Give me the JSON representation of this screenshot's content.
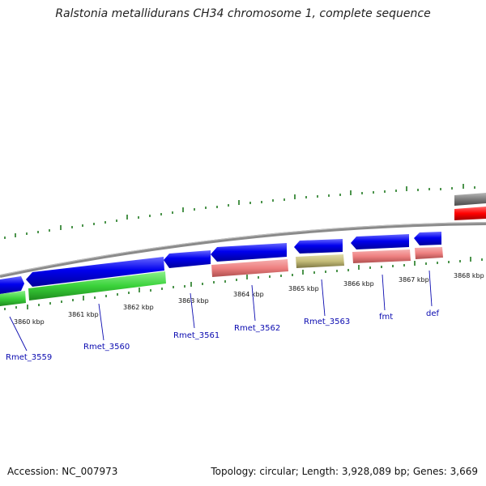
{
  "title": "Ralstonia metallidurans CH34 chromosome 1, complete sequence",
  "footer": {
    "accession": "Accession: NC_007973",
    "summary": "Topology: circular; Length: 3,928,089 bp; Genes: 3,669"
  },
  "ruler_labels": [
    "3860 kbp",
    "3861 kbp",
    "3862 kbp",
    "3863 kbp",
    "3864 kbp",
    "3865 kbp",
    "3866 kbp",
    "3867 kbp",
    "3868 kbp"
  ],
  "gene_labels": [
    "Rmet_3559",
    "Rmet_3560",
    "Rmet_3561",
    "Rmet_3562",
    "Rmet_3563",
    "fmt",
    "def"
  ],
  "colors": {
    "cds_forward": "#0000e6",
    "rna_green": "#3ad23a",
    "salmon": "#ee8080",
    "olive": "#c4bc78",
    "red": "#ff0000",
    "gray": "#808080",
    "tick": "#1f7a1f",
    "label": "#0a0ab0"
  }
}
